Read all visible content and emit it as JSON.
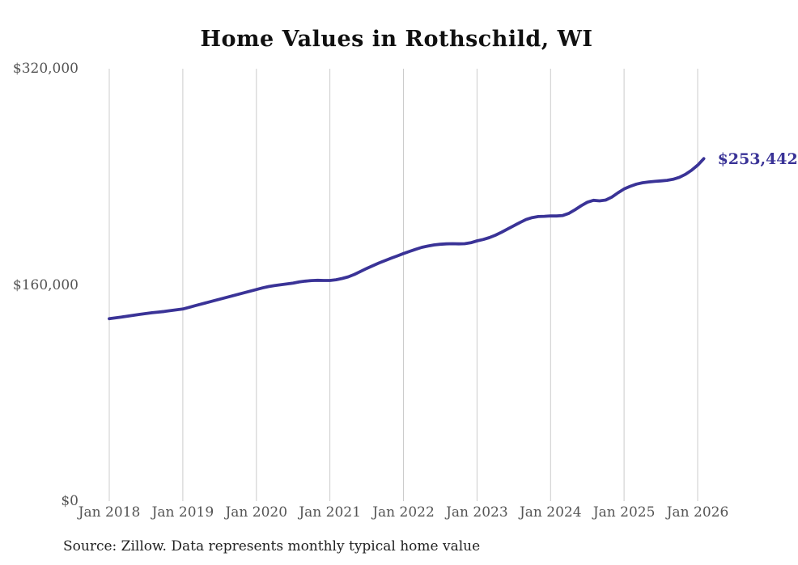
{
  "chart_data": {
    "type": "line",
    "title": "Home Values in Rothschild, WI",
    "end_label": "$253,442",
    "line_color": "#3a3397",
    "gridline_color": "#cccccc",
    "axis_label_color": "#555555",
    "grid": "vertical-only",
    "legend": "none",
    "ylim": [
      0,
      320000
    ],
    "y_ticks": [
      {
        "label": "$320,000",
        "value": 320000
      },
      {
        "label": "$160,000",
        "value": 160000
      },
      {
        "label": "$0",
        "value": 0
      }
    ],
    "x_ticks": [
      {
        "label": "Jan 2018",
        "month_index": 0
      },
      {
        "label": "Jan 2019",
        "month_index": 12
      },
      {
        "label": "Jan 2020",
        "month_index": 24
      },
      {
        "label": "Jan 2021",
        "month_index": 36
      },
      {
        "label": "Jan 2022",
        "month_index": 48
      },
      {
        "label": "Jan 2023",
        "month_index": 60
      },
      {
        "label": "Jan 2024",
        "month_index": 72
      },
      {
        "label": "Jan 2025",
        "month_index": 84
      },
      {
        "label": "Jan 2026",
        "month_index": 96
      }
    ],
    "series": [
      {
        "name": "Typical home value",
        "interval": "monthly",
        "start": "Jan 2018",
        "end": "Feb 2026",
        "values": [
          135000,
          135600,
          136200,
          136900,
          137600,
          138200,
          138800,
          139400,
          139900,
          140400,
          141000,
          141600,
          142200,
          143400,
          144600,
          145800,
          147000,
          148200,
          149400,
          150600,
          151800,
          153000,
          154200,
          155400,
          156600,
          157800,
          158800,
          159600,
          160200,
          160800,
          161400,
          162200,
          162800,
          163200,
          163400,
          163300,
          163300,
          163800,
          164800,
          166000,
          167800,
          170000,
          172200,
          174200,
          176200,
          178000,
          179800,
          181500,
          183200,
          184800,
          186400,
          187800,
          188800,
          189600,
          190100,
          190400,
          190500,
          190400,
          190500,
          191200,
          192600,
          193600,
          195000,
          196800,
          199000,
          201400,
          203800,
          206200,
          208400,
          209800,
          210600,
          210800,
          211100,
          211000,
          211400,
          213000,
          215600,
          218600,
          221200,
          222600,
          222200,
          222800,
          225000,
          228200,
          231000,
          233000,
          234600,
          235600,
          236200,
          236600,
          237000,
          237400,
          238200,
          239600,
          241800,
          244800,
          248600,
          253442
        ]
      }
    ]
  },
  "footer": {
    "source": "Source: Zillow. Data represents monthly typical home value"
  }
}
